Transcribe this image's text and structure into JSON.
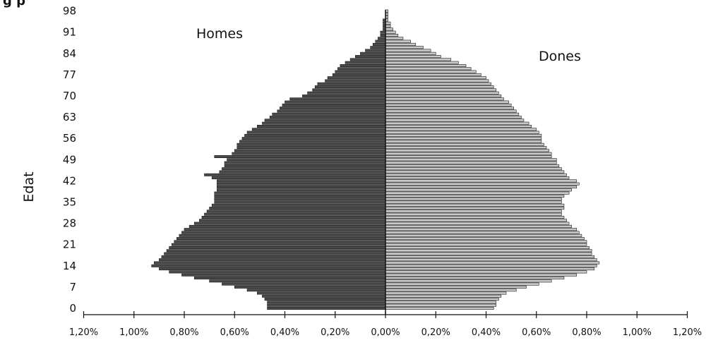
{
  "title_fragment": "g    p",
  "chart_data": {
    "type": "bar",
    "orientation": "horizontal",
    "layout": "population-pyramid",
    "title": "",
    "xlabel": "",
    "ylabel": "Edat",
    "y_ticks": [
      "0",
      "7",
      "14",
      "21",
      "28",
      "35",
      "42",
      "49",
      "56",
      "63",
      "70",
      "77",
      "84",
      "91",
      "98"
    ],
    "x_ticks": [
      "1,20%",
      "1,00%",
      "0,80%",
      "0,60%",
      "0,40%",
      "0,20%",
      "0,00%",
      "0,20%",
      "0,40%",
      "0,60%",
      "0,80%",
      "1,00%",
      "1,20%"
    ],
    "xlim": [
      -1.2,
      1.2
    ],
    "ylim": [
      0,
      98
    ],
    "unit": "% of total population",
    "grid": false,
    "legend": "none (series labels printed inside the plot)",
    "colors": {
      "men_fill": "#4a4a4a",
      "women_fill": "#c8c8c8",
      "outline": "#1a1a1a"
    },
    "categories": [
      0,
      1,
      2,
      3,
      4,
      5,
      6,
      7,
      8,
      9,
      10,
      11,
      12,
      13,
      14,
      15,
      16,
      17,
      18,
      19,
      20,
      21,
      22,
      23,
      24,
      25,
      26,
      27,
      28,
      29,
      30,
      31,
      32,
      33,
      34,
      35,
      36,
      37,
      38,
      39,
      40,
      41,
      42,
      43,
      44,
      45,
      46,
      47,
      48,
      49,
      50,
      51,
      52,
      53,
      54,
      55,
      56,
      57,
      58,
      59,
      60,
      61,
      62,
      63,
      64,
      65,
      66,
      67,
      68,
      69,
      70,
      71,
      72,
      73,
      74,
      75,
      76,
      77,
      78,
      79,
      80,
      81,
      82,
      83,
      84,
      85,
      86,
      87,
      88,
      89,
      90,
      91,
      92,
      93,
      94,
      95,
      96,
      97,
      98,
      99
    ],
    "series": [
      {
        "name": "Homes",
        "side": "left",
        "values": [
          0.47,
          0.47,
          0.47,
          0.48,
          0.49,
          0.51,
          0.55,
          0.6,
          0.65,
          0.7,
          0.76,
          0.81,
          0.86,
          0.9,
          0.93,
          0.92,
          0.9,
          0.89,
          0.88,
          0.87,
          0.86,
          0.85,
          0.84,
          0.83,
          0.82,
          0.81,
          0.8,
          0.78,
          0.76,
          0.74,
          0.73,
          0.72,
          0.71,
          0.7,
          0.69,
          0.68,
          0.68,
          0.68,
          0.68,
          0.67,
          0.67,
          0.67,
          0.67,
          0.69,
          0.72,
          0.66,
          0.65,
          0.64,
          0.64,
          0.63,
          0.68,
          0.61,
          0.6,
          0.59,
          0.59,
          0.58,
          0.57,
          0.56,
          0.55,
          0.53,
          0.51,
          0.49,
          0.48,
          0.46,
          0.45,
          0.43,
          0.42,
          0.41,
          0.4,
          0.38,
          0.33,
          0.31,
          0.29,
          0.28,
          0.27,
          0.24,
          0.23,
          0.21,
          0.2,
          0.19,
          0.18,
          0.16,
          0.14,
          0.12,
          0.1,
          0.08,
          0.06,
          0.05,
          0.04,
          0.03,
          0.02,
          0.02,
          0.01,
          0.01,
          0.01,
          0.01,
          0.0,
          0.0,
          0.0,
          0.0
        ]
      },
      {
        "name": "Dones",
        "side": "right",
        "values": [
          0.43,
          0.44,
          0.44,
          0.45,
          0.46,
          0.48,
          0.52,
          0.56,
          0.61,
          0.66,
          0.71,
          0.76,
          0.8,
          0.83,
          0.84,
          0.85,
          0.84,
          0.83,
          0.82,
          0.82,
          0.81,
          0.8,
          0.8,
          0.79,
          0.78,
          0.77,
          0.76,
          0.74,
          0.73,
          0.72,
          0.71,
          0.7,
          0.7,
          0.71,
          0.71,
          0.7,
          0.7,
          0.71,
          0.73,
          0.74,
          0.76,
          0.77,
          0.76,
          0.73,
          0.72,
          0.71,
          0.7,
          0.69,
          0.68,
          0.68,
          0.66,
          0.66,
          0.65,
          0.64,
          0.63,
          0.62,
          0.62,
          0.62,
          0.61,
          0.6,
          0.58,
          0.57,
          0.55,
          0.54,
          0.53,
          0.52,
          0.51,
          0.5,
          0.49,
          0.47,
          0.46,
          0.45,
          0.44,
          0.43,
          0.42,
          0.41,
          0.4,
          0.38,
          0.36,
          0.34,
          0.32,
          0.29,
          0.26,
          0.22,
          0.2,
          0.18,
          0.15,
          0.12,
          0.1,
          0.07,
          0.05,
          0.04,
          0.03,
          0.02,
          0.02,
          0.01,
          0.01,
          0.01,
          0.01,
          0.0
        ]
      }
    ]
  }
}
